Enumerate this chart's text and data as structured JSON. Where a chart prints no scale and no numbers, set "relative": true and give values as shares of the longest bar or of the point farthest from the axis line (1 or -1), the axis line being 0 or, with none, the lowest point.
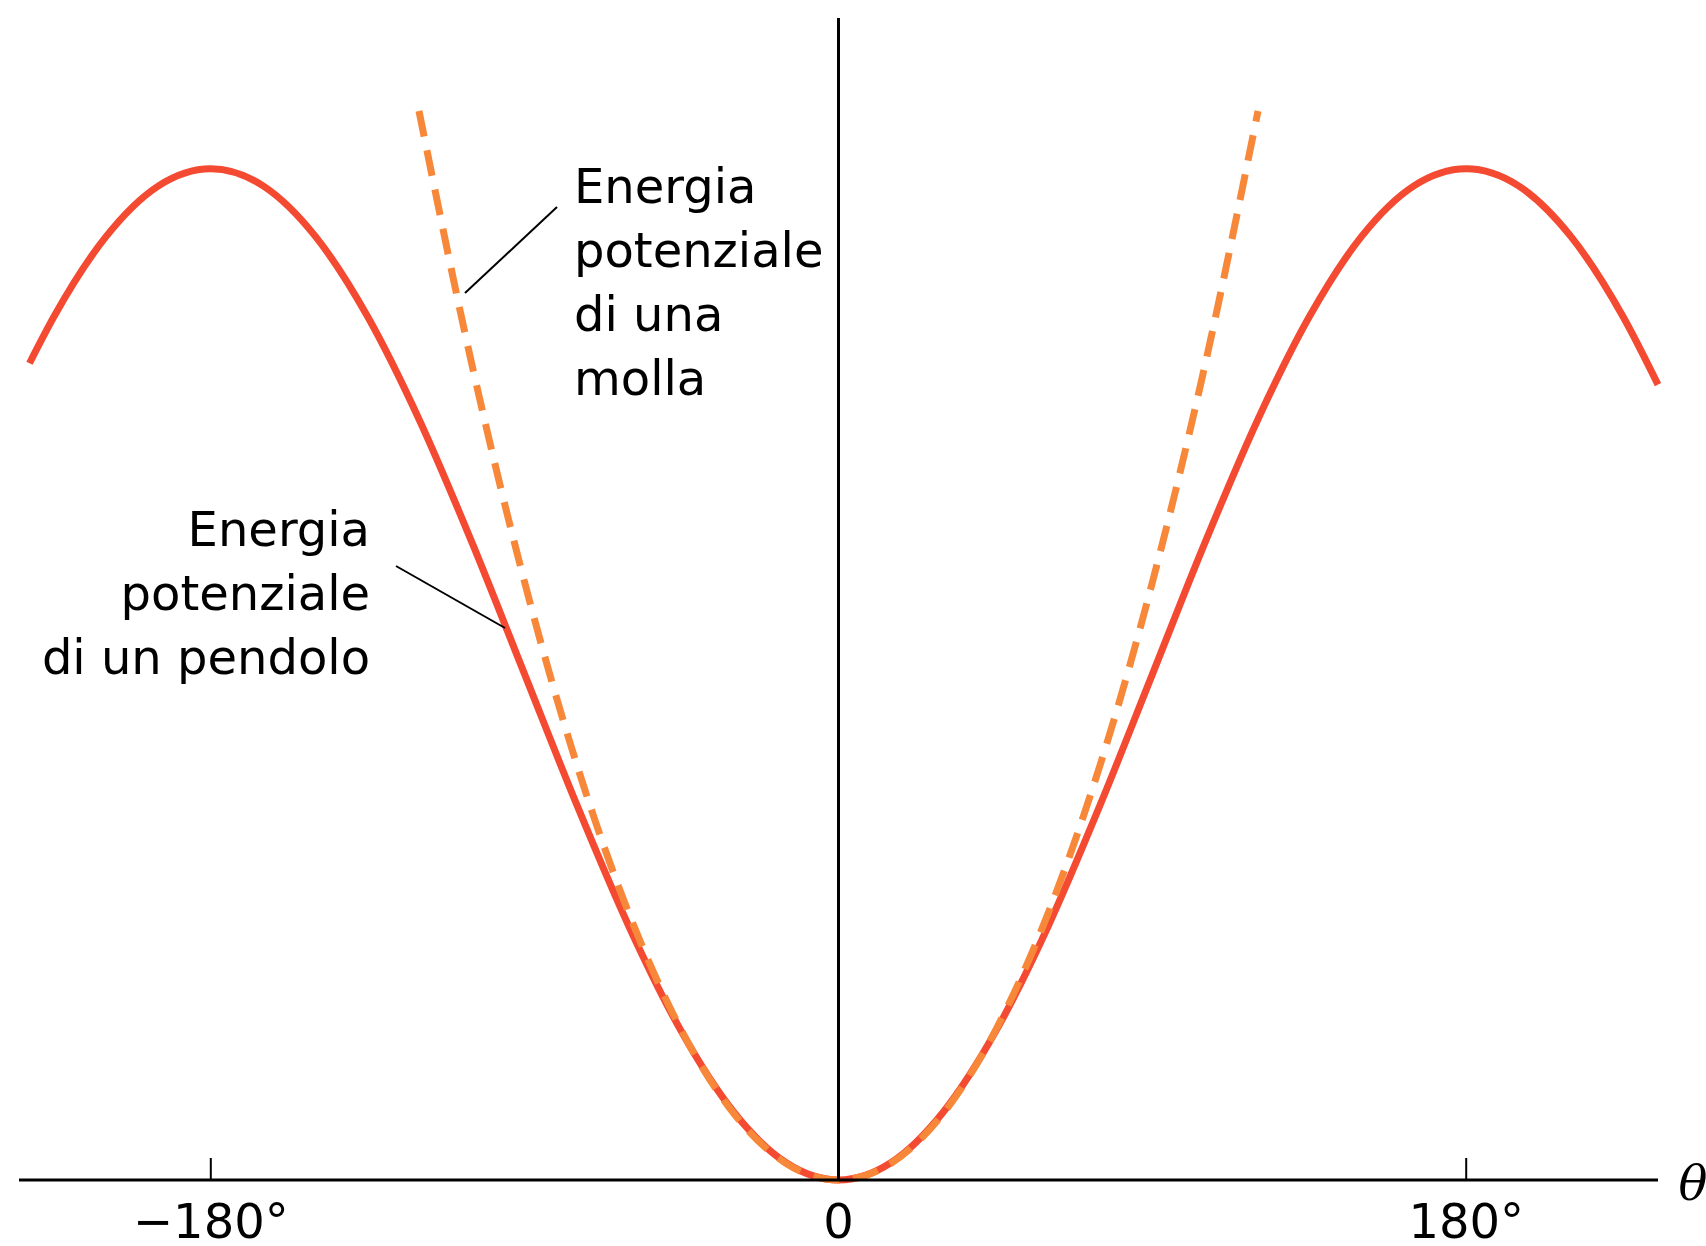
{
  "chart_data": {
    "type": "line",
    "relative": true,
    "xlabel": "θ",
    "xlim": [
      -235,
      235
    ],
    "ref_lines": [
      {
        "axis": "x",
        "value": 0,
        "color": "#000000"
      }
    ],
    "xticks": [
      {
        "value": -180,
        "label": "−180°"
      },
      0,
      {
        "value": 180,
        "label": "180°"
      }
    ],
    "tick_labels": "x",
    "marker": "none",
    "series": [
      {
        "name": "Energia\npotenziale\ndi un pendolo",
        "color": "#f44a32",
        "line_style": "solid",
        "x": [
          -232,
          -225,
          -210,
          -195,
          -180,
          -165,
          -150,
          -135,
          -120,
          -105,
          -90,
          -75,
          -60,
          -45,
          -30,
          -15,
          0,
          15,
          30,
          45,
          60,
          75,
          90,
          105,
          120,
          135,
          150,
          165,
          180,
          195,
          210,
          225,
          235
        ],
        "values": [
          0.764,
          0.8075,
          0.8827,
          0.93,
          0.946,
          0.93,
          0.8827,
          0.8075,
          0.7096,
          0.5955,
          0.473,
          0.3506,
          0.2365,
          0.1386,
          0.0634,
          0.0161,
          0,
          0.0161,
          0.0634,
          0.1386,
          0.2365,
          0.3506,
          0.473,
          0.5955,
          0.7096,
          0.8075,
          0.8827,
          0.93,
          0.946,
          0.93,
          0.8827,
          0.8075,
          0.744
        ]
      },
      {
        "name": "Energia\npotenziale\ndi una\nmolla",
        "color": "#f7883a",
        "line_style": "dashed",
        "x": [
          -120.3,
          -105,
          -90,
          -75,
          -60,
          -45,
          -30,
          -15,
          0,
          15,
          30,
          45,
          60,
          75,
          90,
          105,
          120.3
        ],
        "values": [
          1,
          0.761,
          0.559,
          0.388,
          0.2485,
          0.1398,
          0.0621,
          0.0155,
          0,
          0.0155,
          0.0621,
          0.1398,
          0.2485,
          0.388,
          0.559,
          0.761,
          1
        ]
      }
    ]
  }
}
